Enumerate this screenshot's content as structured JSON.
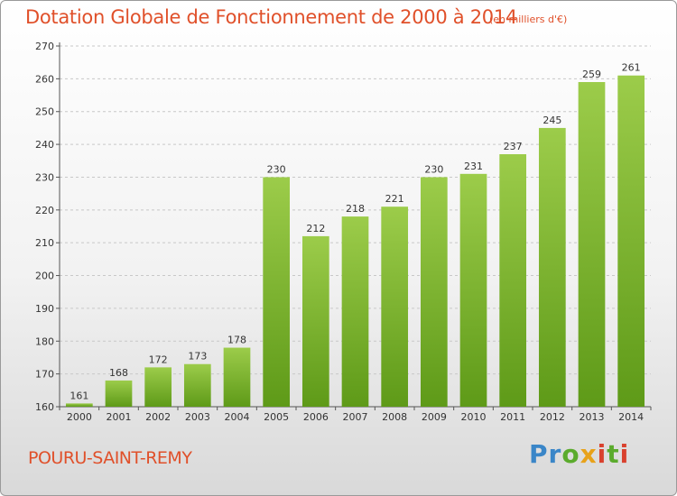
{
  "header": {
    "title": "Dotation Globale de Fonctionnement de 2000 à 2014",
    "subtitle": "(en milliers d'€)"
  },
  "footer": {
    "commune": "POURU-SAINT-REMY",
    "logo_text": "Proxiti",
    "logo_colors": [
      "#3a86c8",
      "#5bab2d",
      "#e8a21a",
      "#d9412e"
    ]
  },
  "chart_data": {
    "type": "bar",
    "title": "Dotation Globale de Fonctionnement de 2000 à 2014",
    "subtitle": "(en milliers d'€)",
    "categories": [
      "2000",
      "2001",
      "2002",
      "2003",
      "2004",
      "2005",
      "2006",
      "2007",
      "2008",
      "2009",
      "2010",
      "2011",
      "2012",
      "2013",
      "2014"
    ],
    "values": [
      161,
      168,
      172,
      173,
      178,
      230,
      212,
      218,
      221,
      230,
      231,
      237,
      245,
      259,
      261
    ],
    "ylim": [
      160,
      270
    ],
    "yticks": [
      160,
      170,
      180,
      190,
      200,
      210,
      220,
      230,
      240,
      250,
      260,
      270
    ],
    "grid": true,
    "bar_color_top": "#9ccc4a",
    "bar_color_bottom": "#5e9a18"
  }
}
